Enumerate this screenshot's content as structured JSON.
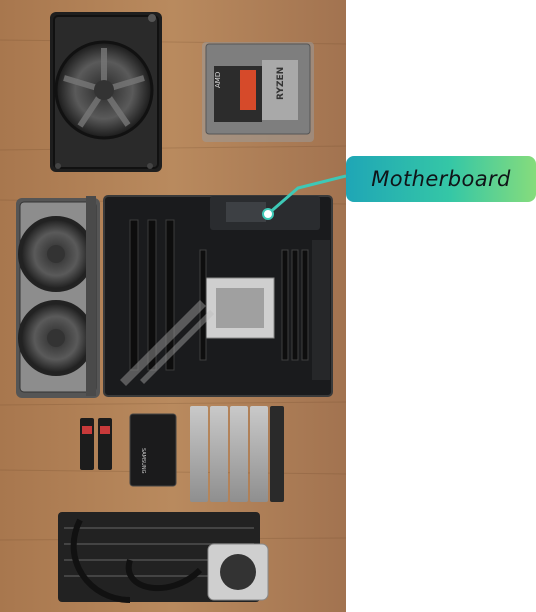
{
  "callout": {
    "label": "Motherboard",
    "gradient_start": "#1fa6b6",
    "gradient_end": "#86dc7c",
    "leader_color": "#3ec8b6"
  },
  "photo": {
    "background": "wood-desk",
    "components": [
      "power-supply",
      "cpu-box",
      "graphics-card",
      "motherboard",
      "m2-ssd",
      "sata-ssd",
      "ram-modules",
      "aio-cooler"
    ],
    "printed_text": {
      "cpu_box": "RYZEN",
      "cpu_brand": "AMD",
      "ssd_brand": "SAMSUNG"
    }
  }
}
